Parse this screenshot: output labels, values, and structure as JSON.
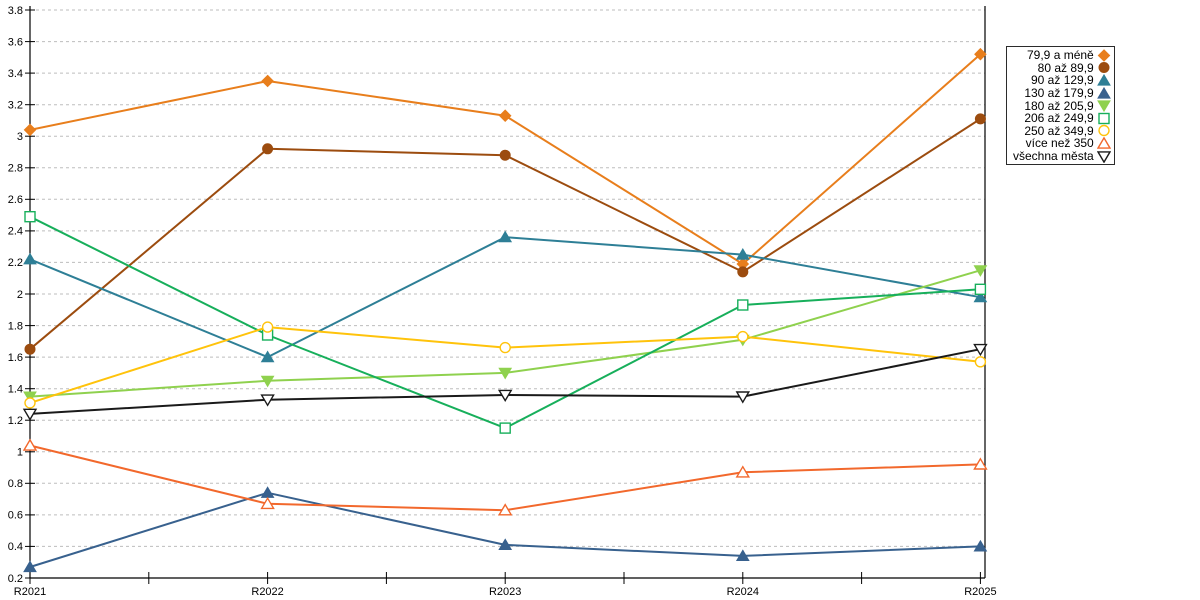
{
  "chart_data": {
    "type": "line",
    "title": "",
    "xlabel": "",
    "ylabel": "",
    "categories": [
      "R2021",
      "R2022",
      "R2023",
      "R2024",
      "R2025"
    ],
    "series": [
      {
        "name": "79,9 a méně",
        "marker": "diamond",
        "filled": true,
        "color": "#E87E1C",
        "values": [
          3.04,
          3.35,
          3.13,
          2.19,
          3.52
        ]
      },
      {
        "name": "80 až 89,9",
        "marker": "circle",
        "filled": true,
        "color": "#9C4C0F",
        "values": [
          1.65,
          2.92,
          2.88,
          2.14,
          3.11
        ]
      },
      {
        "name": "90 až 129,9",
        "marker": "triangle-up",
        "filled": true,
        "color": "#2E7F96",
        "values": [
          2.22,
          1.6,
          2.36,
          2.25,
          1.98
        ]
      },
      {
        "name": "130 až 179,9",
        "marker": "triangle-up",
        "filled": true,
        "color": "#38618E",
        "values": [
          0.27,
          0.74,
          0.41,
          0.34,
          0.4
        ]
      },
      {
        "name": "180 až 205,9",
        "marker": "triangle-down",
        "filled": true,
        "color": "#8FD14E",
        "values": [
          1.35,
          1.45,
          1.5,
          1.71,
          2.15
        ]
      },
      {
        "name": "206 až 249,9",
        "marker": "square",
        "filled": false,
        "color": "#17AF5B",
        "values": [
          2.49,
          1.74,
          1.15,
          1.93,
          2.03
        ]
      },
      {
        "name": "250 až 349,9",
        "marker": "circle",
        "filled": false,
        "color": "#FFC30B",
        "values": [
          1.31,
          1.79,
          1.66,
          1.73,
          1.57
        ]
      },
      {
        "name": "více než 350",
        "marker": "triangle-up",
        "filled": false,
        "color": "#F2682C",
        "values": [
          1.04,
          0.67,
          0.63,
          0.87,
          0.92
        ]
      },
      {
        "name": "všechna města",
        "marker": "triangle-down",
        "filled": false,
        "color": "#1A1A1A",
        "values": [
          1.24,
          1.33,
          1.36,
          1.35,
          1.65
        ]
      }
    ],
    "ylim": [
      0.2,
      3.8
    ],
    "ytick_step": 0.2,
    "y_tick_labels": [
      "0.2",
      "0.4",
      "0.6",
      "0.8",
      "1",
      "1.2",
      "1.4",
      "1.6",
      "1.8",
      "2",
      "2.2",
      "2.4",
      "2.6",
      "2.8",
      "3",
      "3.2",
      "3.4",
      "3.6",
      "3.8"
    ],
    "grid": "horizontal-dashed",
    "legend_position": "right",
    "colors": {
      "axis": "#000000",
      "gridline": "#BDBDBD",
      "plot_border": "#000000",
      "legend_border": "#2B2B2B",
      "background": "#FFFFFF"
    }
  }
}
